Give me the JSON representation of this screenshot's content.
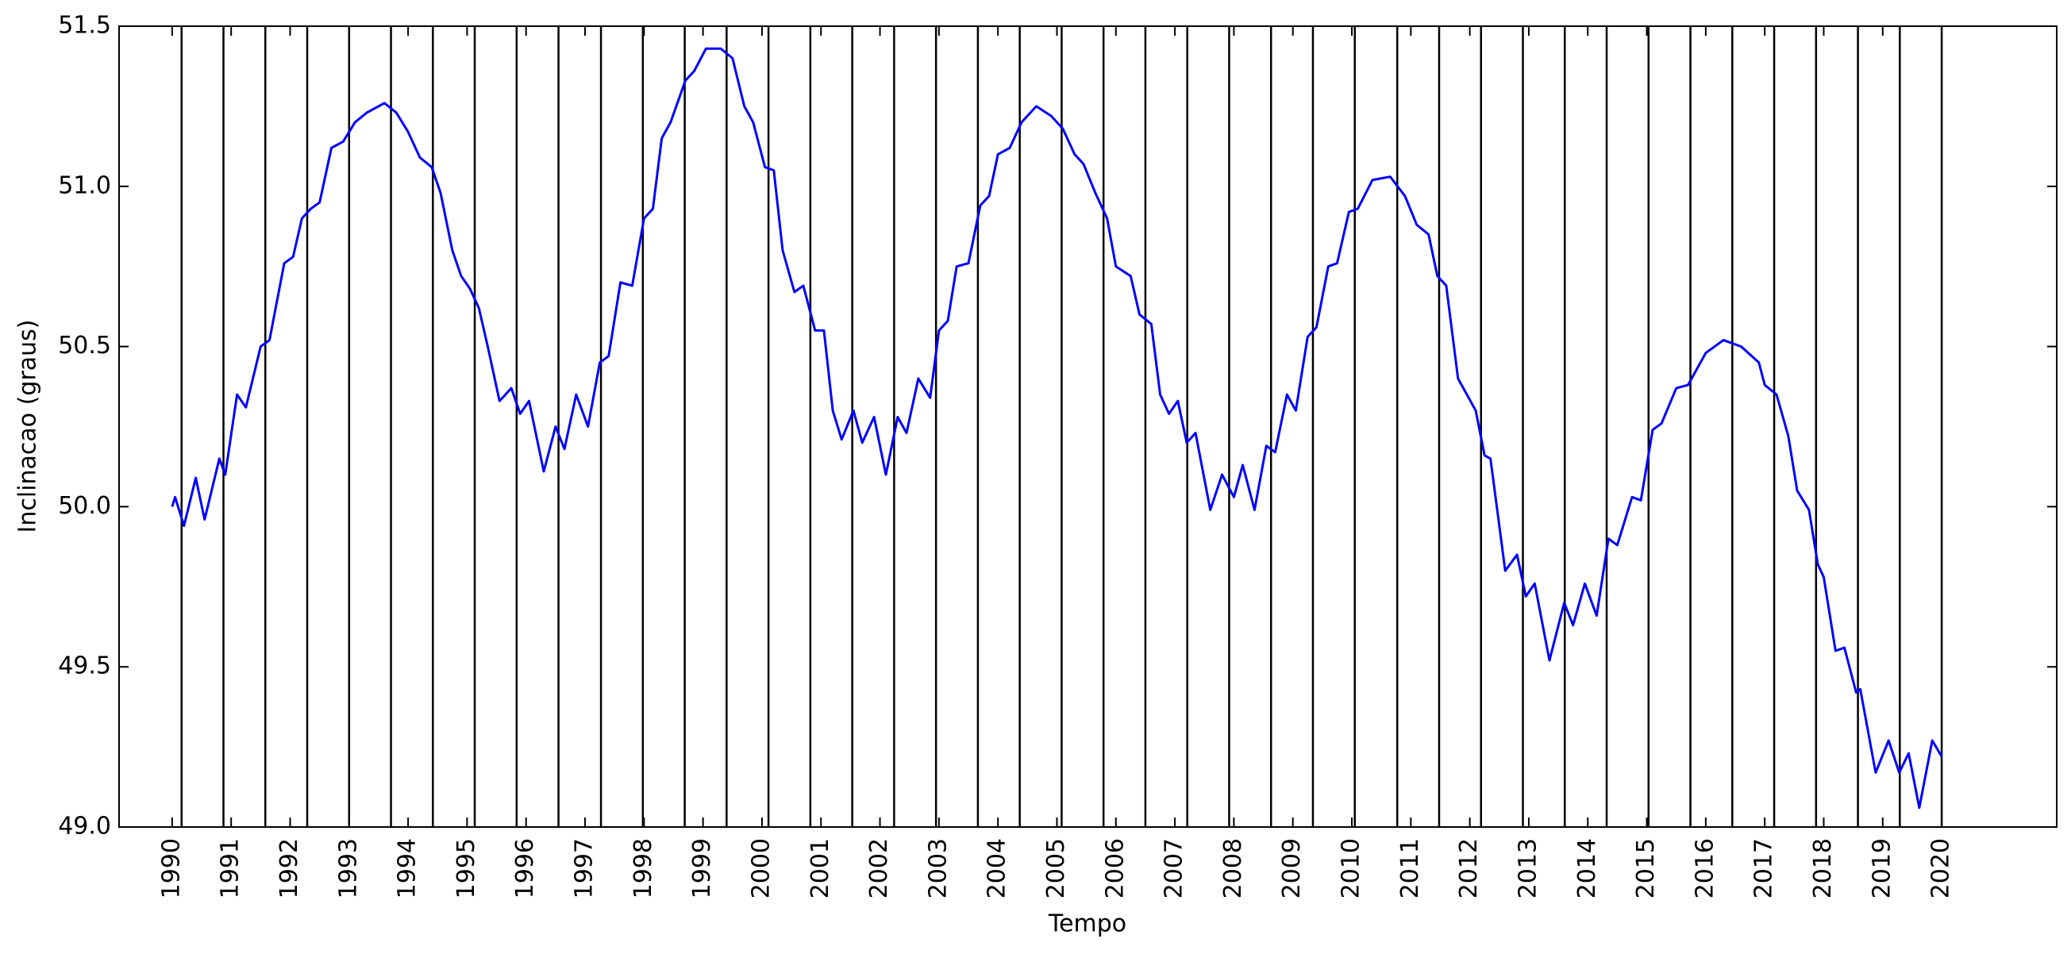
{
  "chart_data": {
    "type": "line",
    "x_label": "Tempo",
    "y_label": "Inclinacao (graus)",
    "xlim": [
      1989.1,
      2021.95
    ],
    "ylim": [
      49.0,
      51.5
    ],
    "xticks": [
      1990,
      1991,
      1992,
      1993,
      1994,
      1995,
      1996,
      1997,
      1998,
      1999,
      2000,
      2001,
      2002,
      2003,
      2004,
      2005,
      2006,
      2007,
      2008,
      2009,
      2010,
      2011,
      2012,
      2013,
      2014,
      2015,
      2016,
      2017,
      2018,
      2019,
      2020
    ],
    "yticks": [
      {
        "value": 49.0,
        "label": "49.0"
      },
      49.5,
      {
        "value": 50.0,
        "label": "50.0"
      },
      50.5,
      {
        "value": 51.0,
        "label": "51.0"
      },
      51.5
    ],
    "vlines": [
      1990.16,
      1990.87,
      1991.58,
      1992.29,
      1993.0,
      1993.71,
      1994.42,
      1995.13,
      1995.84,
      1996.55,
      1997.27,
      1997.98,
      1998.69,
      1999.4,
      2000.11,
      2000.82,
      2001.53,
      2002.24,
      2002.95,
      2003.66,
      2004.37,
      2005.08,
      2005.79,
      2006.5,
      2007.21,
      2007.92,
      2008.63,
      2009.34,
      2010.05,
      2010.77,
      2011.48,
      2012.19,
      2012.9,
      2013.61,
      2014.32,
      2015.03,
      2015.74,
      2016.45,
      2017.16,
      2017.87,
      2018.58,
      2019.29,
      2020.0
    ],
    "vline_color": "#000000",
    "x": [
      1990.0,
      1990.05,
      1990.2,
      1990.4,
      1990.55,
      1990.8,
      1990.9,
      1991.1,
      1991.25,
      1991.5,
      1991.65,
      1991.9,
      1992.05,
      1992.2,
      1992.35,
      1992.5,
      1992.7,
      1992.9,
      1993.1,
      1993.3,
      1993.6,
      1993.8,
      1994.0,
      1994.2,
      1994.4,
      1994.55,
      1994.75,
      1994.9,
      1995.05,
      1995.2,
      1995.35,
      1995.55,
      1995.75,
      1995.9,
      1996.05,
      1996.3,
      1996.5,
      1996.65,
      1996.85,
      1997.05,
      1997.25,
      1997.4,
      1997.6,
      1997.8,
      1998.0,
      1998.15,
      1998.3,
      1998.45,
      1998.7,
      1998.85,
      1999.05,
      1999.3,
      1999.5,
      1999.7,
      1999.85,
      2000.05,
      2000.2,
      2000.35,
      2000.55,
      2000.7,
      2000.9,
      2001.05,
      2001.2,
      2001.35,
      2001.55,
      2001.7,
      2001.9,
      2002.1,
      2002.3,
      2002.45,
      2002.65,
      2002.85,
      2003.0,
      2003.15,
      2003.3,
      2003.5,
      2003.7,
      2003.85,
      2004.0,
      2004.2,
      2004.4,
      2004.65,
      2004.9,
      2005.1,
      2005.3,
      2005.45,
      2005.65,
      2005.85,
      2006.0,
      2006.25,
      2006.4,
      2006.6,
      2006.75,
      2006.9,
      2007.05,
      2007.2,
      2007.35,
      2007.6,
      2007.8,
      2008.0,
      2008.15,
      2008.35,
      2008.55,
      2008.7,
      2008.9,
      2009.05,
      2009.25,
      2009.4,
      2009.6,
      2009.75,
      2009.95,
      2010.1,
      2010.35,
      2010.65,
      2010.9,
      2011.1,
      2011.3,
      2011.45,
      2011.6,
      2011.8,
      2011.95,
      2012.1,
      2012.25,
      2012.35,
      2012.6,
      2012.8,
      2012.95,
      2013.1,
      2013.35,
      2013.6,
      2013.75,
      2013.95,
      2014.15,
      2014.35,
      2014.5,
      2014.75,
      2014.9,
      2015.1,
      2015.25,
      2015.5,
      2015.7,
      2016.0,
      2016.3,
      2016.6,
      2016.9,
      2017.0,
      2017.2,
      2017.4,
      2017.55,
      2017.75,
      2017.9,
      2018.0,
      2018.2,
      2018.35,
      2018.55,
      2018.62,
      2018.88,
      2019.1,
      2019.28,
      2019.44,
      2019.62,
      2019.84,
      2020.0
    ],
    "series": [
      {
        "color": "#0000ff",
        "values": [
          50.0,
          50.03,
          49.94,
          50.09,
          49.96,
          50.15,
          50.1,
          50.35,
          50.31,
          50.5,
          50.52,
          50.76,
          50.78,
          50.9,
          50.93,
          50.95,
          51.12,
          51.14,
          51.2,
          51.23,
          51.26,
          51.23,
          51.17,
          51.09,
          51.06,
          50.98,
          50.8,
          50.72,
          50.68,
          50.62,
          50.5,
          50.33,
          50.37,
          50.29,
          50.33,
          50.11,
          50.25,
          50.18,
          50.35,
          50.25,
          50.45,
          50.47,
          50.7,
          50.69,
          50.9,
          50.93,
          51.15,
          51.2,
          51.33,
          51.36,
          51.43,
          51.43,
          51.4,
          51.25,
          51.2,
          51.06,
          51.05,
          50.8,
          50.67,
          50.69,
          50.55,
          50.55,
          50.3,
          50.21,
          50.3,
          50.2,
          50.28,
          50.1,
          50.28,
          50.23,
          50.4,
          50.34,
          50.55,
          50.58,
          50.75,
          50.76,
          50.94,
          50.97,
          51.1,
          51.12,
          51.2,
          51.25,
          51.22,
          51.18,
          51.1,
          51.07,
          50.98,
          50.9,
          50.75,
          50.72,
          50.6,
          50.57,
          50.35,
          50.29,
          50.33,
          50.2,
          50.23,
          49.99,
          50.1,
          50.03,
          50.13,
          49.99,
          50.19,
          50.17,
          50.35,
          50.3,
          50.53,
          50.56,
          50.75,
          50.76,
          50.92,
          50.93,
          51.02,
          51.03,
          50.97,
          50.88,
          50.85,
          50.72,
          50.69,
          50.4,
          50.35,
          50.3,
          50.16,
          50.15,
          49.8,
          49.85,
          49.72,
          49.76,
          49.52,
          49.7,
          49.63,
          49.76,
          49.66,
          49.9,
          49.88,
          50.03,
          50.02,
          50.24,
          50.26,
          50.37,
          50.38,
          50.48,
          50.52,
          50.5,
          50.45,
          50.38,
          50.35,
          50.22,
          50.05,
          49.99,
          49.82,
          49.78,
          49.55,
          49.56,
          49.42,
          49.43,
          49.17,
          49.27,
          49.17,
          49.23,
          49.06,
          49.27,
          49.22
        ]
      }
    ]
  }
}
